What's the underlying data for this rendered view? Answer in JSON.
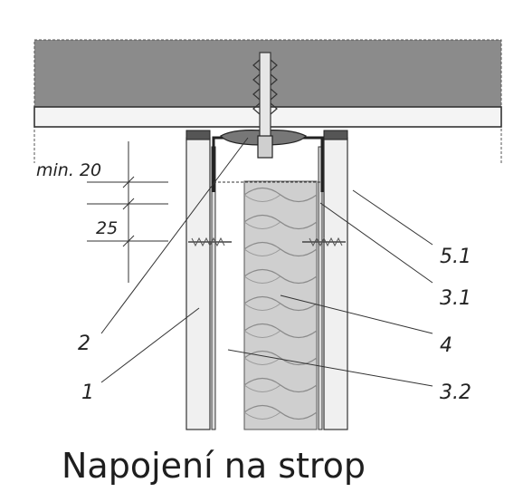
{
  "caption": "Napojení na strop",
  "dimensions": {
    "min_label": "min. 20",
    "gap_label": "25"
  },
  "labels": {
    "item_1": "1",
    "item_2": "2",
    "item_3_1": "3.1",
    "item_3_2": "3.2",
    "item_4": "4",
    "item_5_1": "5.1"
  },
  "colors": {
    "ceiling": "#8b8b8b",
    "board": "#f2f2f2",
    "insulation": "#cfcfcf",
    "line": "#333333"
  }
}
